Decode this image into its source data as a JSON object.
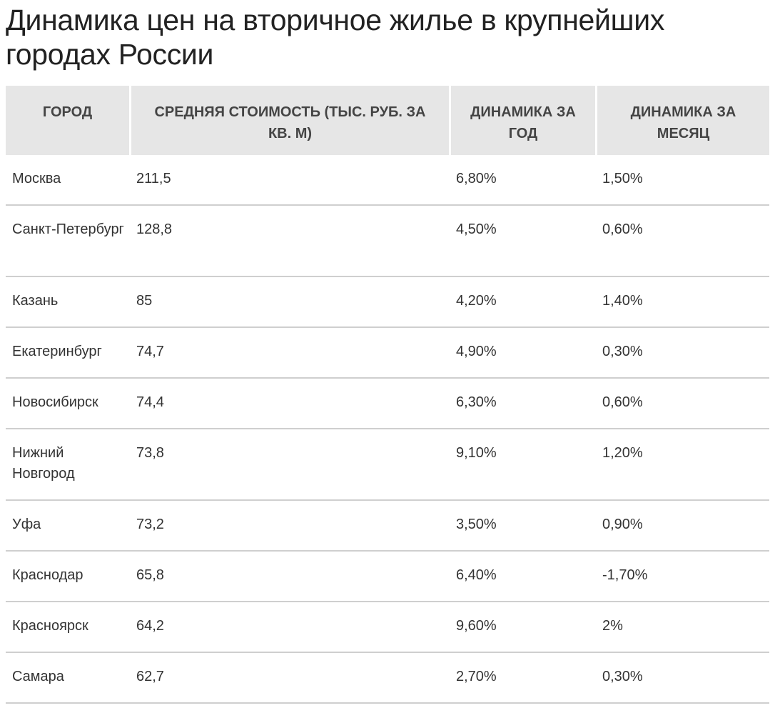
{
  "title": "Динамика цен на вторичное жилье в крупнейших городах России",
  "table": {
    "headers": [
      "ГОРОД",
      "СРЕДНЯЯ СТОИМОСТЬ (ТЫС. РУБ. ЗА КВ. М)",
      "ДИНАМИКА ЗА ГОД",
      "ДИНАМИКА ЗА МЕСЯЦ"
    ],
    "rows": [
      [
        "Москва",
        "211,5",
        "6,80%",
        "1,50%"
      ],
      [
        "Санкт-Петербург",
        "128,8",
        "4,50%",
        "0,60%"
      ],
      [
        "Казань",
        "85",
        "4,20%",
        "1,40%"
      ],
      [
        "Екатеринбург",
        "74,7",
        "4,90%",
        "0,30%"
      ],
      [
        "Новосибирск",
        "74,4",
        "6,30%",
        "0,60%"
      ],
      [
        "Нижний Новгород",
        "73,8",
        "9,10%",
        "1,20%"
      ],
      [
        "Уфа",
        "73,2",
        "3,50%",
        "0,90%"
      ],
      [
        "Краснодар",
        "65,8",
        "6,40%",
        "-1,70%"
      ],
      [
        "Красноярск",
        "64,2",
        "9,60%",
        "2%"
      ],
      [
        "Самара",
        "62,7",
        "2,70%",
        "0,30%"
      ]
    ]
  }
}
